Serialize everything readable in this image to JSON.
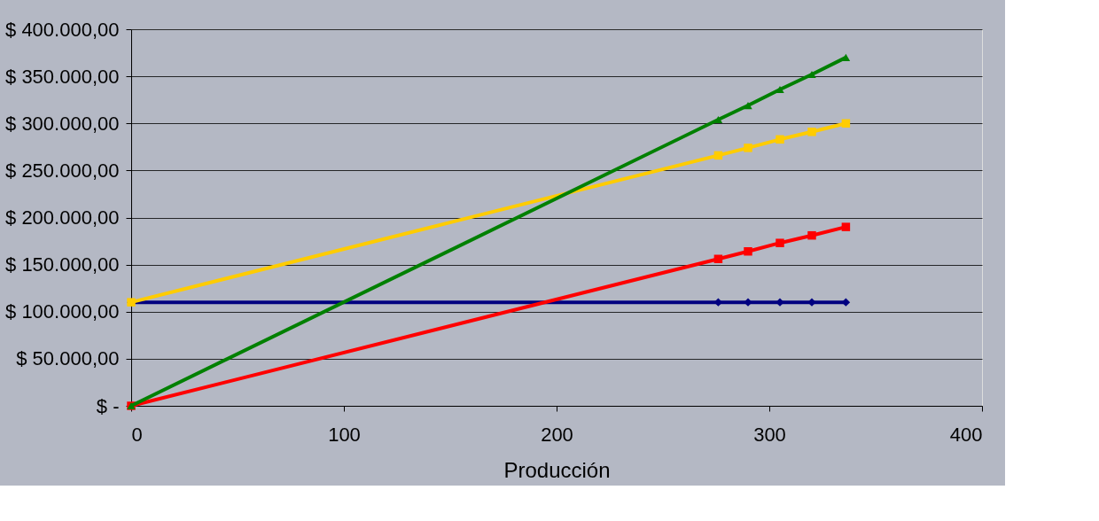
{
  "chart_data": {
    "type": "line",
    "xlabel": "Producción",
    "x": [
      0,
      276,
      290,
      305,
      320,
      336
    ],
    "series": [
      {
        "color": "#000080",
        "marker": "diamond",
        "values": [
          110000,
          110000,
          110000,
          110000,
          110000,
          110000
        ]
      },
      {
        "color": "#ff0000",
        "marker": "square",
        "values": [
          0,
          156000,
          164000,
          173000,
          181000,
          190000
        ]
      },
      {
        "color": "#ffcc00",
        "marker": "square",
        "values": [
          110000,
          266000,
          274000,
          283000,
          291000,
          300000
        ]
      },
      {
        "color": "#008000",
        "marker": "triangle",
        "values": [
          0,
          304000,
          319000,
          336000,
          352000,
          370000
        ]
      }
    ],
    "xlim": [
      0,
      400
    ],
    "xticks": [
      0,
      100,
      200,
      300,
      400
    ],
    "ylim": [
      0,
      400000
    ],
    "yticks": [
      {
        "value": 0,
        "label": "$ -"
      },
      {
        "value": 50000,
        "label": "$ 50.000,00"
      },
      {
        "value": 100000,
        "label": "$ 100.000,00"
      },
      {
        "value": 150000,
        "label": "$ 150.000,00"
      },
      {
        "value": 200000,
        "label": "$ 200.000,00"
      },
      {
        "value": 250000,
        "label": "$ 250.000,00"
      },
      {
        "value": 300000,
        "label": "$ 300.000,00"
      },
      {
        "value": 350000,
        "label": "$ 350.000,00"
      },
      {
        "value": 400000,
        "label": "$ 400.000,00"
      }
    ],
    "grid": "y",
    "legend": false,
    "line_style": "solid"
  }
}
